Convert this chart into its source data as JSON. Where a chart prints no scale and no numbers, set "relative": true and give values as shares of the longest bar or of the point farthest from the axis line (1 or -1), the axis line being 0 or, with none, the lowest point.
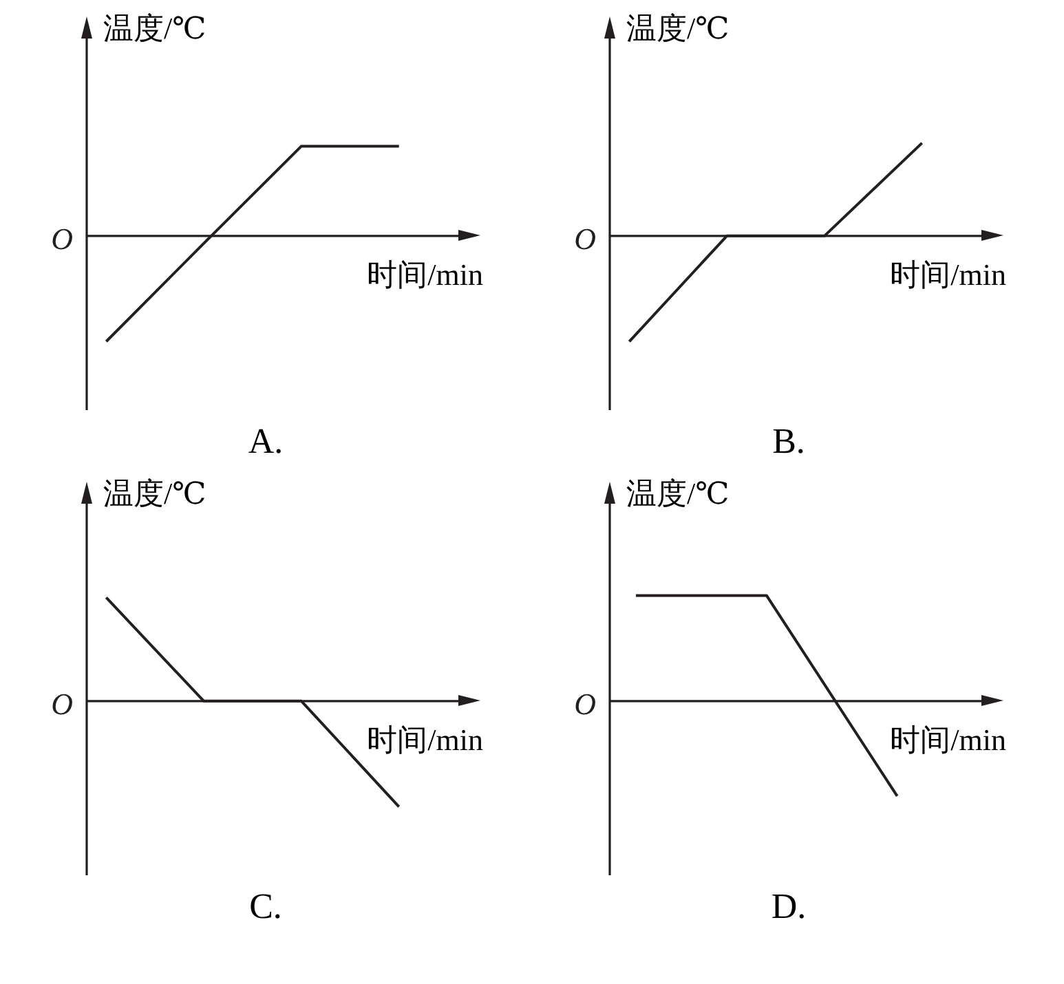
{
  "chart_data": [
    {
      "type": "line",
      "title": "A.",
      "xlabel": "时间/min",
      "ylabel": "温度/℃",
      "relative": true,
      "marker": "none",
      "categories": [
        null,
        null,
        null,
        null
      ],
      "annotations": [
        "O"
      ],
      "series": [
        {
          "color": "#231f20",
          "values": [
            -1,
            -0.07,
            0.85,
            0.85
          ]
        }
      ]
    },
    {
      "type": "line",
      "title": "B.",
      "xlabel": "时间/min",
      "ylabel": "温度/℃",
      "relative": true,
      "marker": "none",
      "categories": [
        null,
        null,
        null,
        null
      ],
      "annotations": [
        "O"
      ],
      "series": [
        {
          "color": "#231f20",
          "values": [
            -1,
            0,
            0,
            0.88
          ]
        }
      ]
    },
    {
      "type": "line",
      "title": "C.",
      "xlabel": "时间/min",
      "ylabel": "温度/℃",
      "relative": true,
      "marker": "none",
      "categories": [
        null,
        null,
        null,
        null
      ],
      "annotations": [
        "O"
      ],
      "series": [
        {
          "color": "#231f20",
          "values": [
            0.98,
            0,
            0,
            -1
          ]
        }
      ]
    },
    {
      "type": "line",
      "title": "D.",
      "xlabel": "时间/min",
      "ylabel": "温度/℃",
      "relative": true,
      "marker": "none",
      "categories": [
        null,
        null,
        null
      ],
      "annotations": [
        "O"
      ],
      "series": [
        {
          "color": "#231f20",
          "values": [
            1,
            1,
            -0.9
          ]
        }
      ]
    }
  ]
}
